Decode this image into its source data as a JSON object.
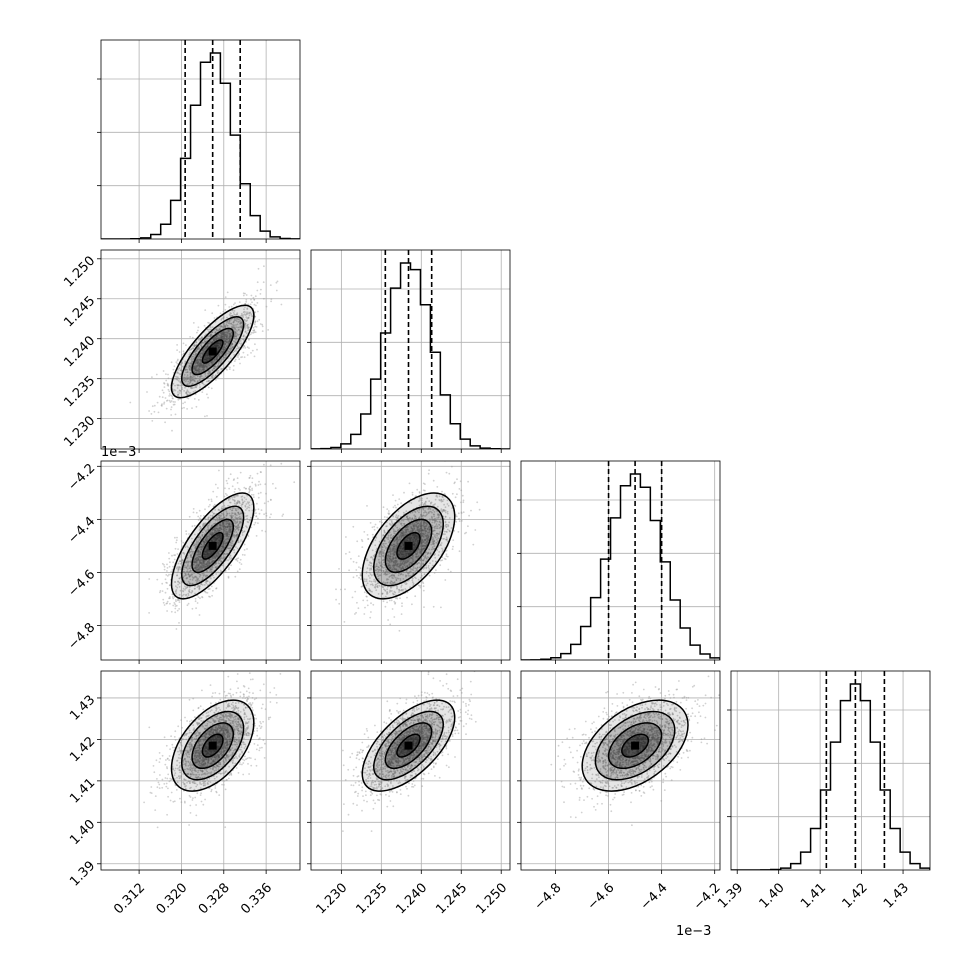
{
  "chart_data": {
    "type": "corner",
    "title": "",
    "params": [
      {
        "range": [
          0.3048,
          0.3424
        ],
        "ticks": [
          "0.312",
          "0.320",
          "0.328",
          "0.336"
        ],
        "tick_values": [
          0.312,
          0.32,
          0.328,
          0.336
        ],
        "offset_label": "",
        "mean": 0.3259,
        "sigma": 0.0039,
        "q": [
          0.3207,
          0.3259,
          0.3311
        ]
      },
      {
        "range": [
          1.2262,
          1.2511
        ],
        "ticks": [
          "1.230",
          "1.235",
          "1.240",
          "1.245",
          "1.250"
        ],
        "tick_values": [
          1.23,
          1.235,
          1.24,
          1.245,
          1.25
        ],
        "offset_label": "",
        "mean": 1.2384,
        "sigma": 0.0029,
        "q": [
          1.2355,
          1.2384,
          1.2413
        ]
      },
      {
        "range": [
          -4.93,
          -4.18
        ],
        "ticks": [
          "−4.8",
          "−4.6",
          "−4.4",
          "−4.2"
        ],
        "tick_values": [
          -4.8,
          -4.6,
          -4.4,
          -4.2
        ],
        "offset_label": "1e−3",
        "mean": -4.5,
        "sigma": 0.1,
        "q": [
          -4.6,
          -4.5,
          -4.4
        ]
      },
      {
        "range": [
          1.3885,
          1.4365
        ],
        "ticks": [
          "1.39",
          "1.40",
          "1.41",
          "1.42",
          "1.43"
        ],
        "tick_values": [
          1.39,
          1.4,
          1.41,
          1.42,
          1.43
        ],
        "offset_label": "",
        "mean": 1.4185,
        "sigma": 0.0055,
        "q": [
          1.4115,
          1.4185,
          1.4255
        ]
      }
    ],
    "correlations": [
      {
        "pair": [
          1,
          0
        ],
        "rho": 0.78
      },
      {
        "pair": [
          2,
          0
        ],
        "rho": 0.72
      },
      {
        "pair": [
          2,
          1
        ],
        "rho": 0.55
      },
      {
        "pair": [
          3,
          0
        ],
        "rho": 0.5
      },
      {
        "pair": [
          3,
          1
        ],
        "rho": 0.62
      },
      {
        "pair": [
          3,
          2
        ],
        "rho": 0.45
      }
    ],
    "histogram_bins": 20,
    "contour_levels_sigma": [
      0.5,
      1.0,
      1.5,
      2.0
    ],
    "quantile_lines": "dashed",
    "grid": true,
    "colors": {
      "line": "#000000",
      "grid": "#b0b0b0",
      "points": "#9a9a9a",
      "density": "#000000"
    }
  }
}
